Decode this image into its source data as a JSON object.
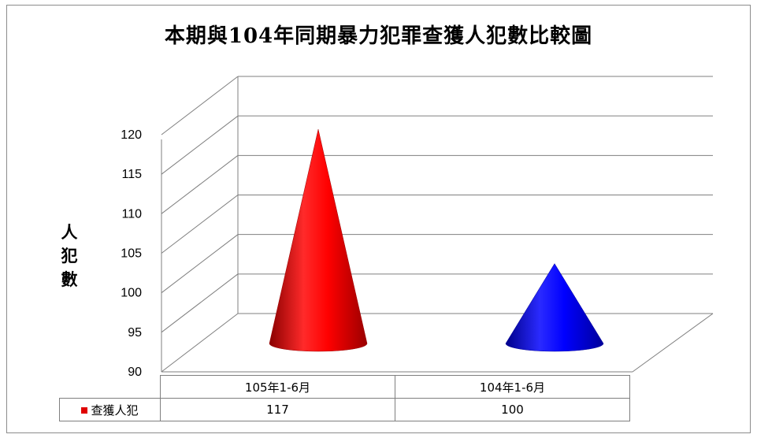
{
  "chart_data": {
    "type": "bar",
    "shape": "cone",
    "title": "本期與104年同期暴力犯罪查獲人犯數比較圖",
    "ylabel": "人犯數",
    "xlabel": "",
    "categories": [
      "105年1-6月",
      "104年1-6月"
    ],
    "series": [
      {
        "name": "查獲人犯",
        "values": [
          117,
          100
        ]
      }
    ],
    "ylim": [
      90,
      120
    ],
    "yticks": [
      "90",
      "95",
      "100",
      "105",
      "110",
      "115",
      "120"
    ],
    "bar_colors": [
      "#ff0000",
      "#0000ff"
    ],
    "grid": true,
    "legend": "data-table",
    "data_table_values": [
      "117",
      "100"
    ]
  }
}
